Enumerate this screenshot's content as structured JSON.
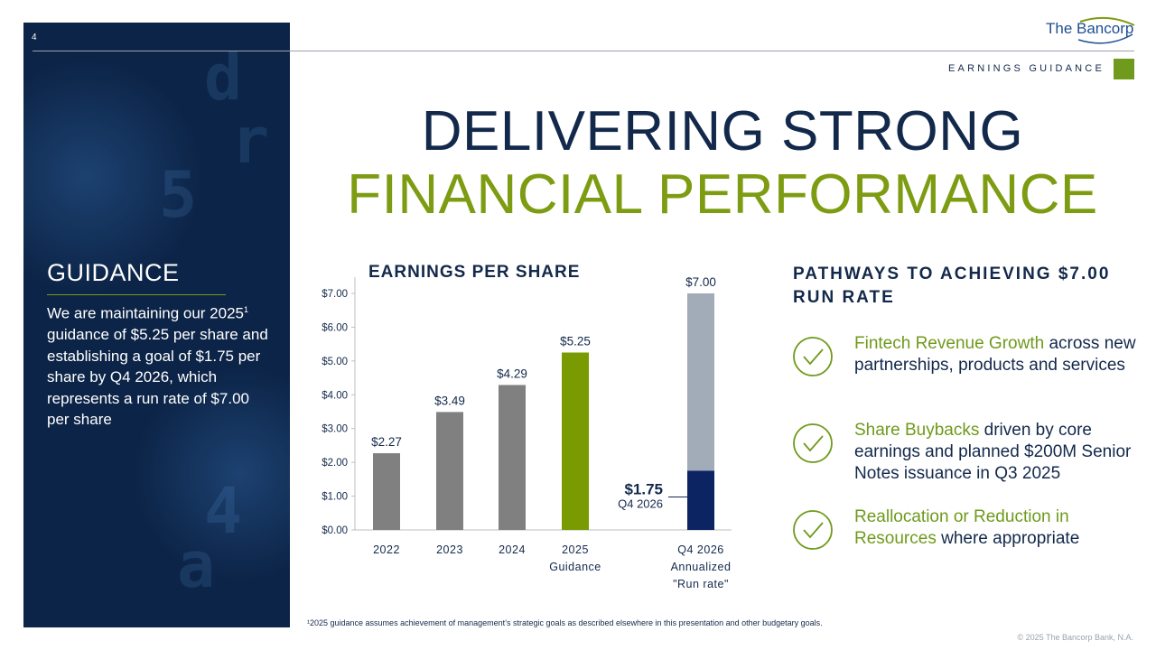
{
  "page_number": "4",
  "logo_text": "The Bancorp",
  "section_label": "EARNINGS GUIDANCE",
  "title_line1": "DELIVERING STRONG",
  "title_line2": "FINANCIAL PERFORMANCE",
  "guidance": {
    "heading": "GUIDANCE",
    "text_before_sup": "We are maintaining our 2025",
    "sup": "1",
    "text_after_sup": " guidance of $5.25 per share and establishing a goal of $1.75 per share by Q4 2026, which represents a run rate of $7.00 per share"
  },
  "chart_data": {
    "type": "bar",
    "title": "EARNINGS PER SHARE",
    "categories": [
      "2022",
      "2023",
      "2024",
      "2025\nGuidance",
      "Q4 2026\nAnnualized\n\"Run rate\""
    ],
    "values": [
      2.27,
      3.49,
      4.29,
      5.25,
      7.0
    ],
    "value_labels": [
      "$2.27",
      "$3.49",
      "$4.29",
      "$5.25",
      "$7.00"
    ],
    "stacked_base": {
      "category_index": 4,
      "value": 1.75,
      "label": "$1.75",
      "sublabel": "Q4 2026"
    },
    "ylim": [
      0,
      7
    ],
    "yticks": [
      0,
      1,
      2,
      3,
      4,
      5,
      6,
      7
    ],
    "ytick_labels": [
      "$0.00",
      "$1.00",
      "$2.00",
      "$3.00",
      "$4.00",
      "$5.00",
      "$6.00",
      "$7.00"
    ],
    "colors": {
      "historical": "#808080",
      "guidance": "#7a9a01",
      "runrate_top": "#a2abb8",
      "runrate_base": "#0d2463"
    },
    "grid": false
  },
  "pathways": {
    "title": "PATHWAYS TO ACHIEVING $7.00 RUN RATE",
    "items": [
      {
        "highlight": "Fintech Revenue Growth",
        "rest": " across new partnerships, products and services",
        "icon": "check-circle-icon"
      },
      {
        "highlight": "Share Buybacks",
        "rest": " driven by core earnings and planned $200M Senior Notes issuance in Q3 2025",
        "icon": "check-circle-icon"
      },
      {
        "highlight": "Reallocation or Reduction in Resources",
        "rest": " where appropriate",
        "icon": "check-circle-icon"
      }
    ]
  },
  "footnote": "¹2025 guidance assumes achievement of management’s strategic goals as described elsewhere in this presentation and other budgetary goals.",
  "copyright": "© 2025 The Bancorp Bank, N.A."
}
